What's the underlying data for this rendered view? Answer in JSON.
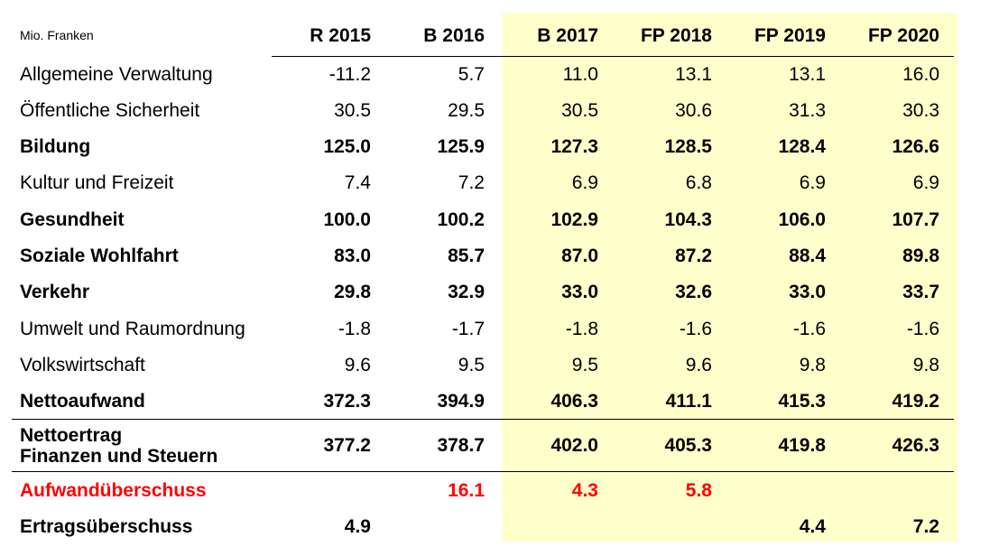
{
  "unit_label": "Mio. Franken",
  "columns": [
    "R 2015",
    "B 2016",
    "B 2017",
    "FP 2018",
    "FP 2019",
    "FP 2020"
  ],
  "rows": [
    {
      "label": "Allgemeine Verwaltung",
      "values": [
        "-11.2",
        "5.7",
        "11.0",
        "13.1",
        "13.1",
        "16.0"
      ]
    },
    {
      "label": "Öffentliche Sicherheit",
      "values": [
        "30.5",
        "29.5",
        "30.5",
        "30.6",
        "31.3",
        "30.3"
      ]
    },
    {
      "label": "Bildung",
      "values": [
        "125.0",
        "125.9",
        "127.3",
        "128.5",
        "128.4",
        "126.6"
      ]
    },
    {
      "label": "Kultur und Freizeit",
      "values": [
        "7.4",
        "7.2",
        "6.9",
        "6.8",
        "6.9",
        "6.9"
      ]
    },
    {
      "label": "Gesundheit",
      "values": [
        "100.0",
        "100.2",
        "102.9",
        "104.3",
        "106.0",
        "107.7"
      ]
    },
    {
      "label": "Soziale Wohlfahrt",
      "values": [
        "83.0",
        "85.7",
        "87.0",
        "87.2",
        "88.4",
        "89.8"
      ]
    },
    {
      "label": "Verkehr",
      "values": [
        "29.8",
        "32.9",
        "33.0",
        "32.6",
        "33.0",
        "33.7"
      ]
    },
    {
      "label": "Umwelt und Raumordnung",
      "values": [
        "-1.8",
        "-1.7",
        "-1.8",
        "-1.6",
        "-1.6",
        "-1.6"
      ]
    },
    {
      "label": "Volkswirtschaft",
      "values": [
        "9.6",
        "9.5",
        "9.5",
        "9.6",
        "9.8",
        "9.8"
      ]
    },
    {
      "label": "Nettoaufwand",
      "values": [
        "372.3",
        "394.9",
        "406.3",
        "411.1",
        "415.3",
        "419.2"
      ]
    },
    {
      "label_line1": "Nettoertrag",
      "label_line2": "Finanzen und Steuern",
      "values": [
        "377.2",
        "378.7",
        "402.0",
        "405.3",
        "419.8",
        "426.3"
      ]
    },
    {
      "label": "Aufwandüberschuss",
      "values": [
        "",
        "16.1",
        "4.3",
        "5.8",
        "",
        ""
      ]
    },
    {
      "label": "Ertragsüberschuss",
      "values": [
        "4.9",
        "",
        "",
        "",
        "4.4",
        "7.2"
      ]
    }
  ],
  "colors": {
    "forecast_highlight": "#ffffcc",
    "deficit_text": "#ff0000"
  }
}
